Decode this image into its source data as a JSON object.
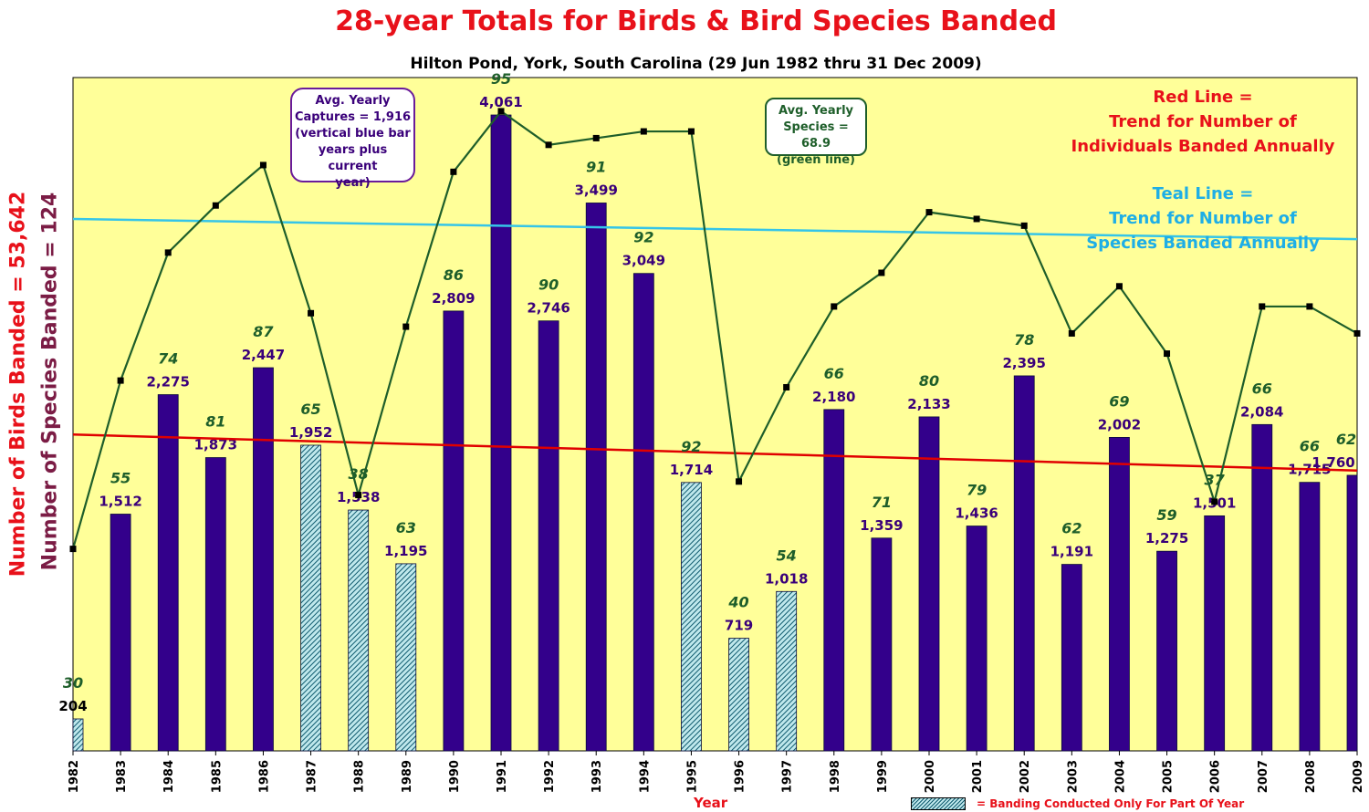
{
  "chart_data": {
    "type": "bar",
    "title": "28-year Totals for Birds & Bird Species Banded",
    "subtitle": "Hilton Pond, York, South Carolina (29 Jun 1982 thru 31 Dec 2009)",
    "ylabel_birds": "Number of Birds Banded = 53,642",
    "ylabel_species": "Number of Species Banded = 124",
    "xlabel": "Year",
    "categories": [
      "1982",
      "1983",
      "1984",
      "1985",
      "1986",
      "1987",
      "1988",
      "1989",
      "1990",
      "1991",
      "1992",
      "1993",
      "1994",
      "1995",
      "1996",
      "1997",
      "1998",
      "1999",
      "2000",
      "2001",
      "2002",
      "2003",
      "2004",
      "2005",
      "2006",
      "2007",
      "2008",
      "2009"
    ],
    "series": [
      {
        "name": "Birds Banded",
        "values": [
          204,
          1512,
          2275,
          1873,
          2447,
          1952,
          1538,
          1195,
          2809,
          4061,
          2746,
          3499,
          3049,
          1714,
          719,
          1018,
          2180,
          1359,
          2133,
          1436,
          2395,
          1191,
          2002,
          1275,
          1501,
          2084,
          1715,
          1760
        ],
        "labels": [
          "204",
          "1,512",
          "2,275",
          "1,873",
          "2,447",
          "1,952",
          "1,538",
          "1,195",
          "2,809",
          "4,061",
          "2,746",
          "3,499",
          "3,049",
          "1,714",
          "719",
          "1,018",
          "2,180",
          "1,359",
          "2,133",
          "1,436",
          "2,395",
          "1,191",
          "2,002",
          "1,275",
          "1,501",
          "2,084",
          "1,715",
          "1,760"
        ],
        "partial_year": [
          true,
          false,
          false,
          false,
          false,
          true,
          true,
          true,
          false,
          false,
          false,
          false,
          false,
          true,
          true,
          true,
          false,
          false,
          false,
          false,
          false,
          false,
          false,
          false,
          false,
          false,
          false,
          false
        ],
        "color": "#33008b"
      },
      {
        "name": "Species Banded",
        "values": [
          30,
          55,
          74,
          81,
          87,
          65,
          38,
          63,
          86,
          95,
          90,
          91,
          92,
          92,
          40,
          54,
          66,
          71,
          80,
          79,
          78,
          62,
          69,
          59,
          37,
          66,
          66,
          62
        ],
        "color": "#1e5e2a"
      }
    ],
    "trend_birds": {
      "start": 2020,
      "end": 1790,
      "color": "#e00000"
    },
    "trend_species": {
      "start": 79,
      "end": 76,
      "color": "#35c5e8"
    },
    "ylim_birds": [
      0,
      4300
    ],
    "ylim_species": [
      0,
      100
    ],
    "grid": false
  },
  "annotations": {
    "captures_box": [
      "Avg. Yearly",
      "Captures = 1,916",
      "(vertical blue bar",
      "years plus current",
      "year)"
    ],
    "species_box": [
      "Avg. Yearly",
      "Species = 68.9",
      "(green line)"
    ],
    "red_note": [
      "Red Line =",
      "Trend for Number of",
      "Individuals Banded Annually"
    ],
    "teal_note": [
      "Teal Line =",
      "Trend for Number of",
      "Species Banded Annually"
    ]
  },
  "legend": {
    "text": "= Banding Conducted Only For Part Of Year"
  },
  "colors": {
    "plot_bg": "#ffff99",
    "bar": "#33008b",
    "partial_bar_stripe": "#0f5a6e",
    "species_line": "#1e5e2a",
    "red_trend": "#e00000",
    "teal_trend": "#35c5e8",
    "title": "#e8111a"
  }
}
